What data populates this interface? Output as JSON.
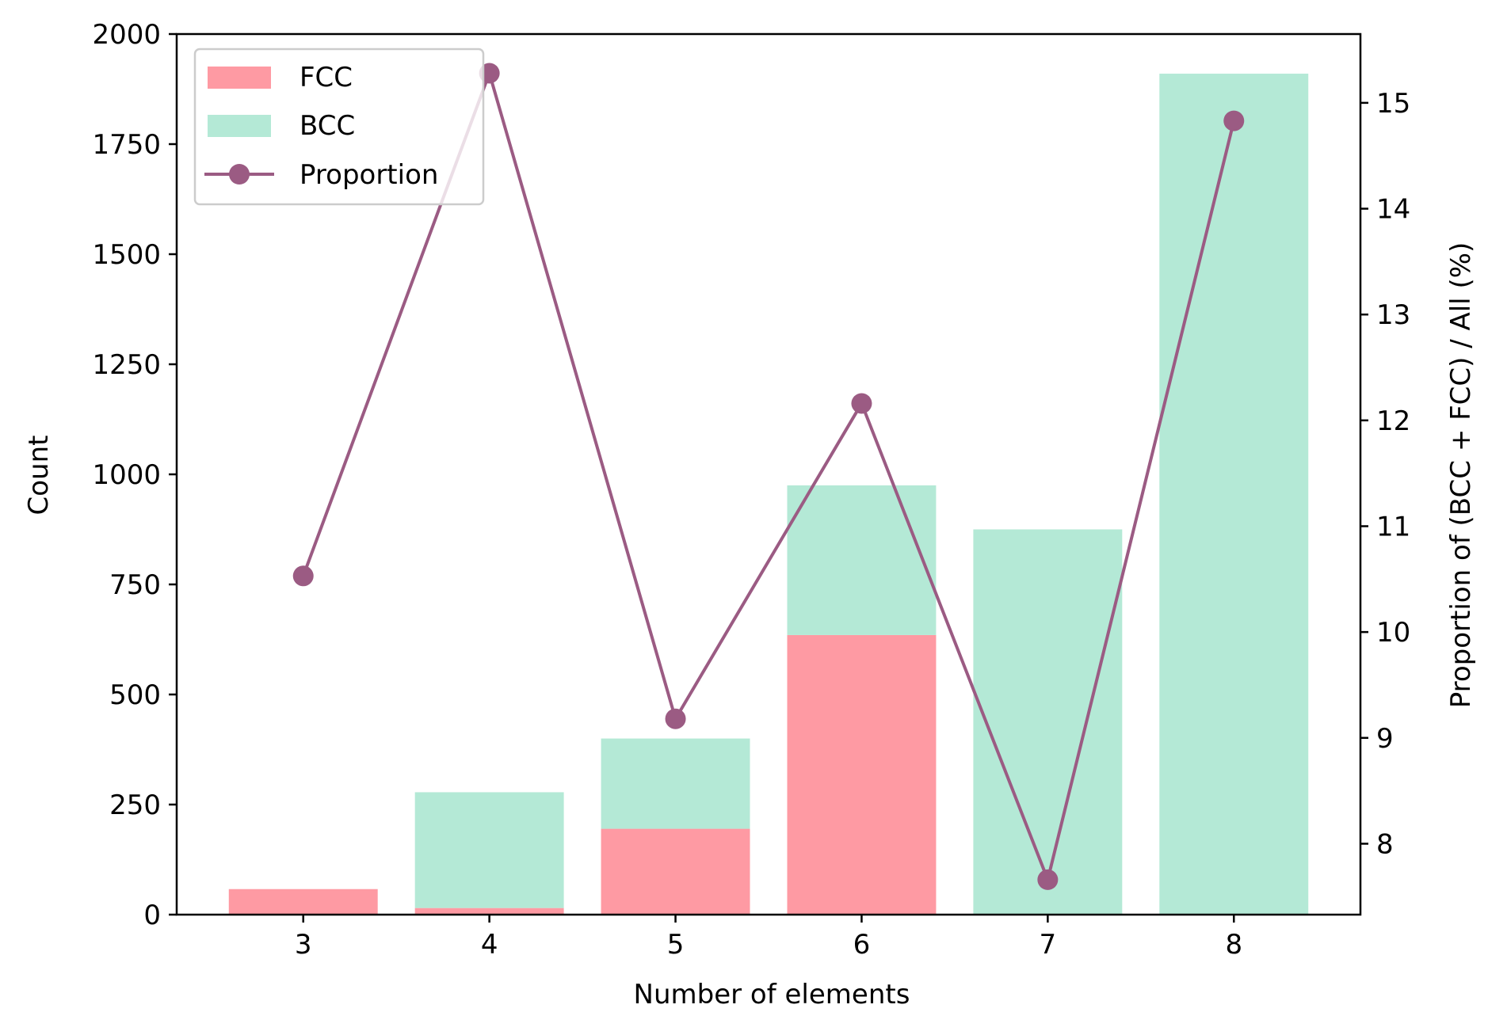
{
  "chart_data": {
    "type": "bar",
    "stacked": true,
    "xlabel": "Number of elements",
    "ylabel": "Count",
    "y2label": "Proportion of (BCC + FCC) / All (%)",
    "categories": [
      "3",
      "4",
      "5",
      "6",
      "7",
      "8"
    ],
    "x": [
      3,
      4,
      5,
      6,
      7,
      8
    ],
    "xlim": [
      2.32,
      8.68
    ],
    "ylim": [
      0,
      2000
    ],
    "y2lim": [
      7.33,
      15.65
    ],
    "yticks": [
      0,
      250,
      500,
      750,
      1000,
      1250,
      1500,
      1750,
      2000
    ],
    "y2ticks": [
      8,
      9,
      10,
      11,
      12,
      13,
      14,
      15
    ],
    "grid": false,
    "legend_position": "top-left",
    "series": [
      {
        "name": "FCC",
        "kind": "bar",
        "axis": "left",
        "color": "#fe9aa3",
        "values": [
          58,
          15,
          195,
          635,
          0,
          0
        ]
      },
      {
        "name": "BCC",
        "kind": "bar",
        "axis": "left",
        "color": "#b4e9d6",
        "values": [
          0,
          263,
          205,
          340,
          875,
          1910
        ]
      },
      {
        "name": "Proportion",
        "kind": "line",
        "axis": "right",
        "color": "#9b5b83",
        "values": [
          10.53,
          15.28,
          9.18,
          12.16,
          7.66,
          14.83
        ]
      }
    ]
  }
}
